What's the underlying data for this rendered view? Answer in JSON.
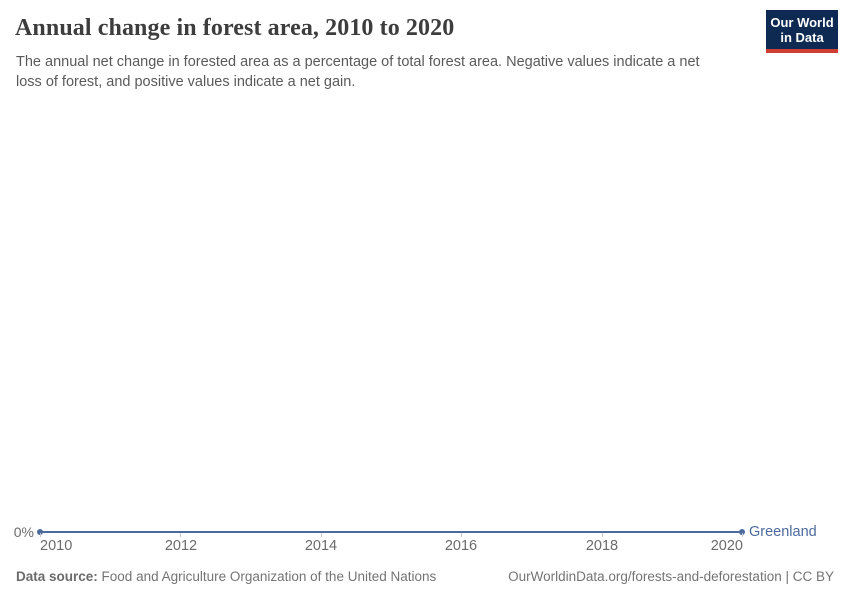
{
  "header": {
    "title": "Annual change in forest area, 2010 to 2020",
    "subtitle": "The annual net change in forested area as a percentage of total forest area. Negative values indicate a net loss of forest, and positive values indicate a net gain."
  },
  "logo": {
    "line1": "Our World",
    "line2": "in Data",
    "background_color": "#0e2a52",
    "accent_bar_color": "#cf3e34",
    "text_color": "#ffffff"
  },
  "chart_data": {
    "type": "line",
    "title": "Annual change in forest area, 2010 to 2020",
    "xlabel": "",
    "ylabel": "",
    "x_range": [
      2010,
      2020
    ],
    "grid": false,
    "x_tick_labels": [
      "2010",
      "2012",
      "2014",
      "2016",
      "2018",
      "2020"
    ],
    "y_tick_labels": [
      "0%"
    ],
    "series": [
      {
        "name": "Greenland",
        "color": "#4c6a9c",
        "unit": "%",
        "x": [
          2010,
          2011,
          2012,
          2013,
          2014,
          2015,
          2016,
          2017,
          2018,
          2019,
          2020
        ],
        "values": [
          0,
          0,
          0,
          0,
          0,
          0,
          0,
          0,
          0,
          0,
          0
        ]
      }
    ],
    "end_label": "Greenland",
    "axis_label_color": "#6b6b6b",
    "tick_color": "#c6c6c6"
  },
  "footer": {
    "source_label": "Data source:",
    "source_text": "Food and Agriculture Organization of the United Nations",
    "link_text": "OurWorldinData.org/forests-and-deforestation",
    "separator": " | ",
    "license_text": "CC BY"
  }
}
